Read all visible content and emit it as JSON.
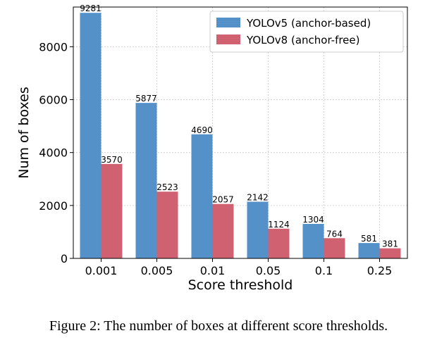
{
  "chart_data": {
    "type": "bar",
    "categories": [
      "0.001",
      "0.005",
      "0.01",
      "0.05",
      "0.1",
      "0.25"
    ],
    "series": [
      {
        "name": "YOLOv5 (anchor-based)",
        "values": [
          9281,
          5877,
          4690,
          2142,
          1304,
          581
        ],
        "color": "#5591c9"
      },
      {
        "name": "YOLOv8 (anchor-free)",
        "values": [
          3570,
          2523,
          2057,
          1124,
          764,
          381
        ],
        "color": "#cf6170"
      }
    ],
    "xlabel": "Score threshold",
    "ylabel": "Num of boxes",
    "ylim": [
      0,
      9500
    ],
    "yticks": [
      0,
      2000,
      4000,
      6000,
      8000
    ],
    "grid": true,
    "legend": "top-right"
  },
  "caption": "Figure 2: The number of boxes at different score thresholds."
}
